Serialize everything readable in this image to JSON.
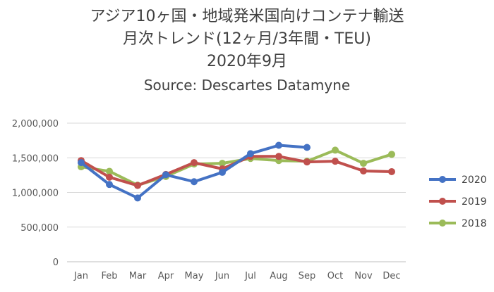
{
  "chart_data": {
    "type": "line",
    "title_lines": [
      "アジア10ヶ国・地域発米国向けコンテナ輸送",
      "月次トレンド(12ヶ月/3年間・TEU)",
      "2020年9月"
    ],
    "source": "Source: Descartes Datamyne",
    "categories": [
      "Jan",
      "Feb",
      "Mar",
      "Apr",
      "May",
      "Jun",
      "Jul",
      "Aug",
      "Sep",
      "Oct",
      "Nov",
      "Dec"
    ],
    "ylim": [
      0,
      2000000
    ],
    "yticks": [
      0,
      500000,
      1000000,
      1500000,
      2000000
    ],
    "ytick_labels": [
      "0",
      "500,000",
      "1,000,000",
      "1,500,000",
      "2,000,000"
    ],
    "grid": true,
    "legend_position": "right",
    "series": [
      {
        "name": "2020",
        "color": "#4472C4",
        "values": [
          1430000,
          1115000,
          920000,
          1255000,
          1155000,
          1290000,
          1560000,
          1680000,
          1650000,
          null,
          null,
          null
        ]
      },
      {
        "name": "2019",
        "color": "#C0504D",
        "values": [
          1460000,
          1220000,
          1100000,
          1260000,
          1430000,
          1340000,
          1520000,
          1520000,
          1440000,
          1450000,
          1310000,
          1300000
        ]
      },
      {
        "name": "2018",
        "color": "#9BBB59",
        "values": [
          1370000,
          1305000,
          1105000,
          1230000,
          1410000,
          1420000,
          1490000,
          1460000,
          1450000,
          1610000,
          1420000,
          1550000
        ]
      }
    ]
  }
}
